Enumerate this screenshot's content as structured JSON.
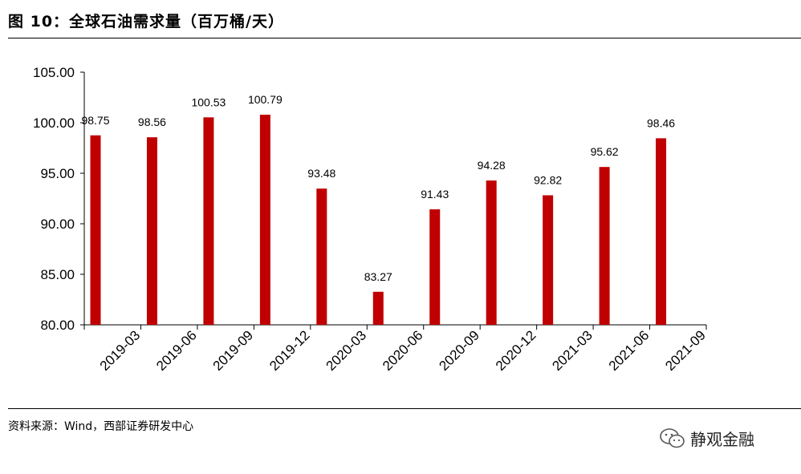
{
  "figure": {
    "title": "图 10：全球石油需求量（百万桶/天）",
    "source": "资料来源：Wind，西部证券研发中心",
    "watermark": "静观金融",
    "watermark_icon": "wechat-icon"
  },
  "chart_data": {
    "type": "bar",
    "categories": [
      "2019-03",
      "2019-06",
      "2019-09",
      "2019-12",
      "2020-03",
      "2020-06",
      "2020-09",
      "2020-12",
      "2021-03",
      "2021-06",
      "2021-09"
    ],
    "values": [
      98.75,
      98.56,
      100.53,
      100.79,
      93.48,
      83.27,
      91.43,
      94.28,
      92.82,
      95.62,
      98.46
    ],
    "value_labels": [
      "98.75",
      "98.56",
      "100.53",
      "100.79",
      "93.48",
      "83.27",
      "91.43",
      "94.28",
      "92.82",
      "95.62",
      "98.46"
    ],
    "yticks": [
      "80.00",
      "85.00",
      "90.00",
      "95.00",
      "100.00",
      "105.00"
    ],
    "ylim": [
      80,
      105
    ],
    "bar_color": "#C00000",
    "grid": false,
    "legend": "none"
  }
}
